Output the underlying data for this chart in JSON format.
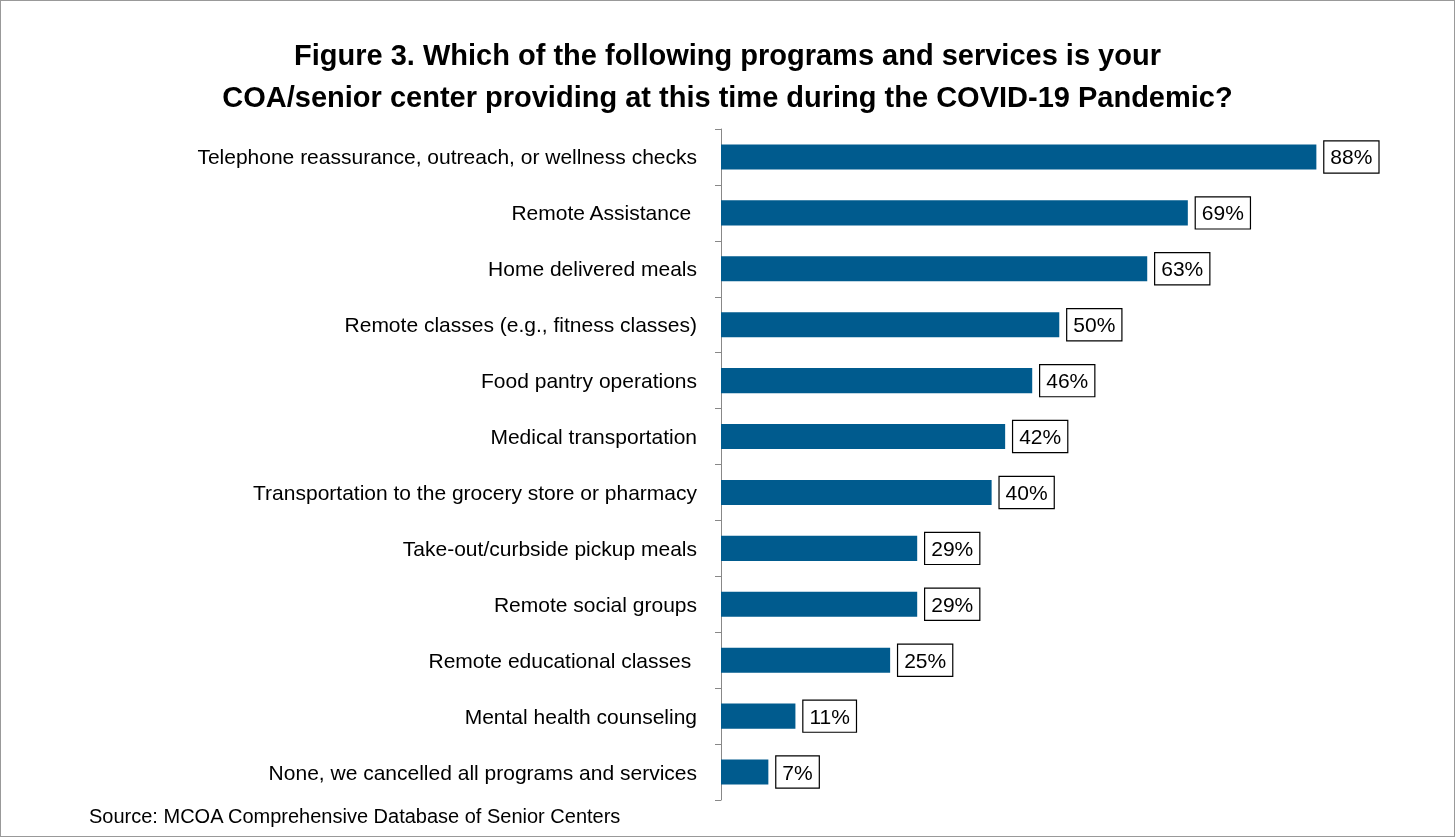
{
  "chart_data": {
    "type": "bar",
    "orientation": "horizontal",
    "title": "Figure 3. Which of the following programs and services is your\nCOA/senior center providing at this time during the COVID-19 Pandemic?",
    "categories": [
      "Telephone reassurance, outreach, or wellness checks",
      "Remote Assistance ",
      "Home delivered meals",
      "Remote classes (e.g., fitness classes)",
      "Food pantry operations",
      "Medical transportation",
      "Transportation to the grocery store or pharmacy",
      "Take-out/curbside pickup meals",
      "Remote social groups",
      "Remote educational classes ",
      "Mental health counseling",
      "None, we cancelled all programs and services"
    ],
    "values": [
      88,
      69,
      63,
      50,
      46,
      42,
      40,
      29,
      29,
      25,
      11,
      7
    ],
    "value_labels": [
      "88%",
      "69%",
      "63%",
      "50%",
      "46%",
      "42%",
      "40%",
      "29%",
      "29%",
      "25%",
      "11%",
      "7%"
    ],
    "color": "#005b8e",
    "annotations": [
      "Source: MCOA Comprehensive Database of Senior Centers"
    ]
  }
}
